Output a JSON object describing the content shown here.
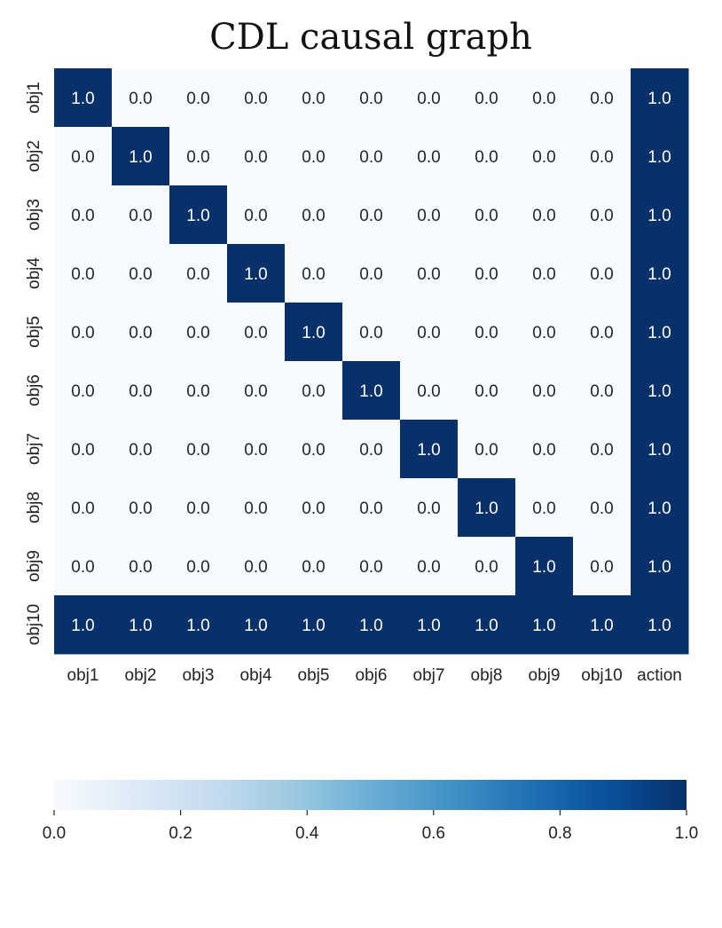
{
  "chart_data": {
    "type": "heatmap",
    "title": "CDL causal graph",
    "x_categories": [
      "obj1",
      "obj2",
      "obj3",
      "obj4",
      "obj5",
      "obj6",
      "obj7",
      "obj8",
      "obj9",
      "obj10",
      "action"
    ],
    "y_categories": [
      "obj1",
      "obj2",
      "obj3",
      "obj4",
      "obj5",
      "obj6",
      "obj7",
      "obj8",
      "obj9",
      "obj10"
    ],
    "values": [
      [
        1,
        0,
        0,
        0,
        0,
        0,
        0,
        0,
        0,
        0,
        1
      ],
      [
        0,
        1,
        0,
        0,
        0,
        0,
        0,
        0,
        0,
        0,
        1
      ],
      [
        0,
        0,
        1,
        0,
        0,
        0,
        0,
        0,
        0,
        0,
        1
      ],
      [
        0,
        0,
        0,
        1,
        0,
        0,
        0,
        0,
        0,
        0,
        1
      ],
      [
        0,
        0,
        0,
        0,
        1,
        0,
        0,
        0,
        0,
        0,
        1
      ],
      [
        0,
        0,
        0,
        0,
        0,
        1,
        0,
        0,
        0,
        0,
        1
      ],
      [
        0,
        0,
        0,
        0,
        0,
        0,
        1,
        0,
        0,
        0,
        1
      ],
      [
        0,
        0,
        0,
        0,
        0,
        0,
        0,
        1,
        0,
        0,
        1
      ],
      [
        0,
        0,
        0,
        0,
        0,
        0,
        0,
        0,
        1,
        0,
        1
      ],
      [
        1,
        1,
        1,
        1,
        1,
        1,
        1,
        1,
        1,
        1,
        1
      ]
    ],
    "annotation_format": "0.0",
    "colormap": "Blues",
    "colors": {
      "low": "#f7fbff",
      "high": "#08306b"
    },
    "colorbar": {
      "orientation": "horizontal",
      "position": "bottom",
      "range": [
        0.0,
        1.0
      ],
      "ticks": [
        "0.0",
        "0.2",
        "0.4",
        "0.6",
        "0.8",
        "1.0"
      ]
    }
  }
}
